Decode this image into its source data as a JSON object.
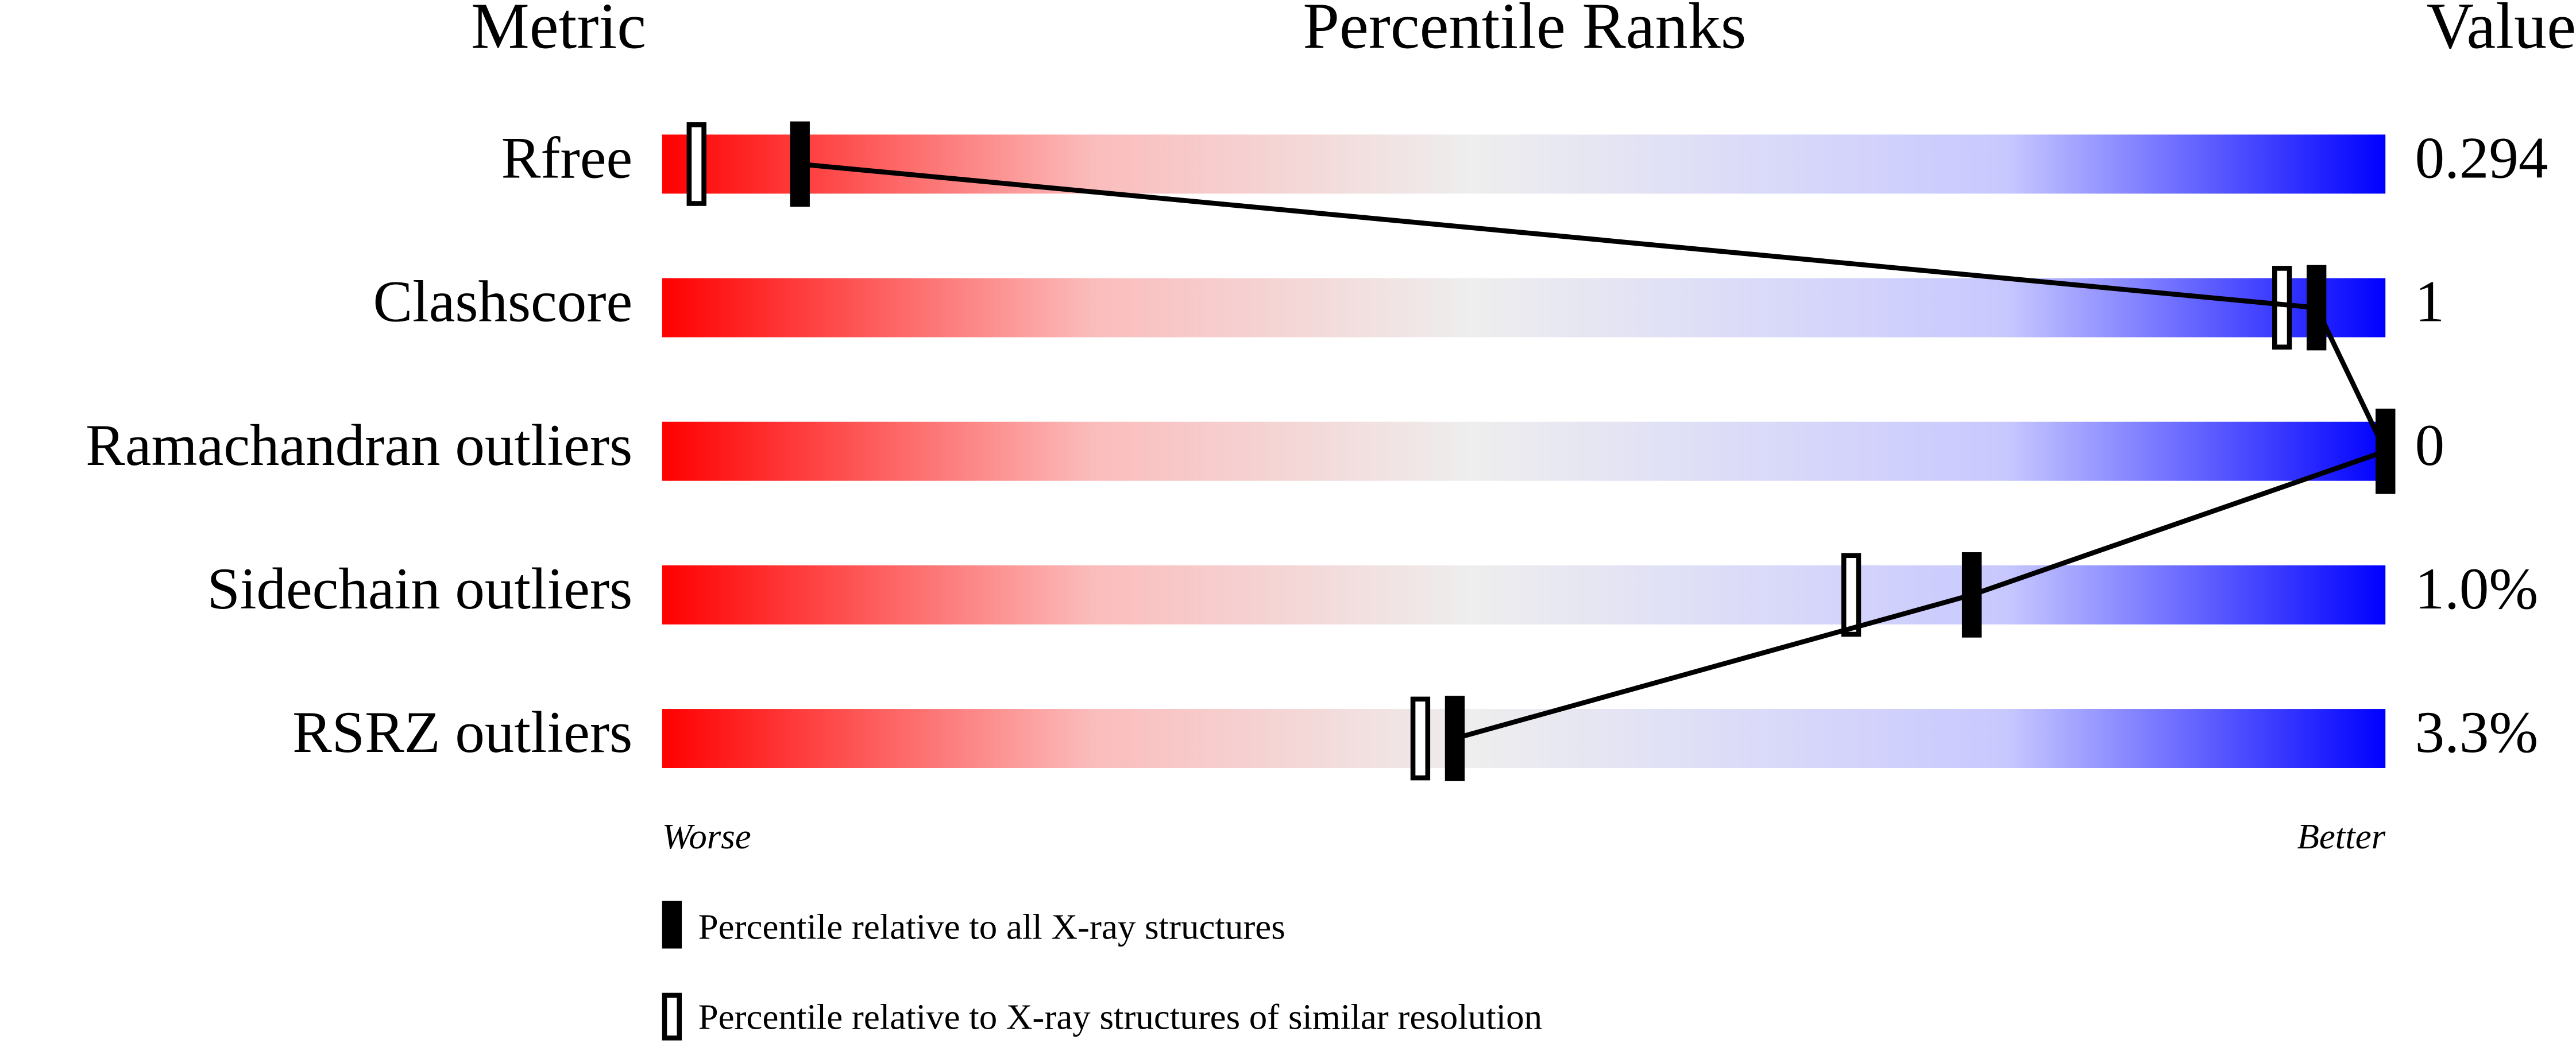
{
  "chart_data": {
    "type": "percentile-slider",
    "headers": [
      "Metric",
      "Percentile Ranks",
      "Value"
    ],
    "categories": [
      "Rfree",
      "Clashscore",
      "Ramachandran outliers",
      "Sidechain outliers",
      "RSRZ outliers"
    ],
    "metric_values": [
      "0.294",
      "1",
      "0",
      "1.0%",
      "3.3%"
    ],
    "xlim": [
      0,
      100
    ],
    "xlim_labels": [
      "Worse",
      "Better"
    ],
    "series": [
      {
        "name": "Percentile relative to all X-ray structures",
        "color": "#000000",
        "values": [
          8,
          96,
          100,
          76,
          46
        ]
      },
      {
        "name": "Percentile relative to X-ray structures of similar resolution",
        "color": "#ffffff",
        "values": [
          2,
          94,
          100,
          69,
          44
        ]
      }
    ]
  }
}
